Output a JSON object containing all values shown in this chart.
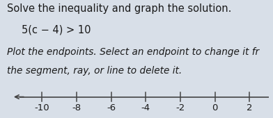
{
  "title_line1": "Solve the inequality and graph the solution.",
  "equation": "5(c − 4) > 10",
  "instruction_line1": "Plot the endpoints. Select an endpoint to change it fr",
  "instruction_line2": "the segment, ray, or line to delete it.",
  "bg_color": "#d8dfe8",
  "text_color": "#1a1a1a",
  "number_line": {
    "x_min": -11.8,
    "x_max": 3.2,
    "ticks": [
      -10,
      -8,
      -6,
      -4,
      -2,
      0,
      2
    ],
    "tick_labels": [
      "-10",
      "-8",
      "-6",
      "-4",
      "-2",
      "0",
      "2"
    ]
  },
  "title_fontsize": 10.5,
  "eq_fontsize": 10.5,
  "instr_fontsize": 9.8,
  "tick_fontsize": 9.5,
  "line_color": "#444444"
}
